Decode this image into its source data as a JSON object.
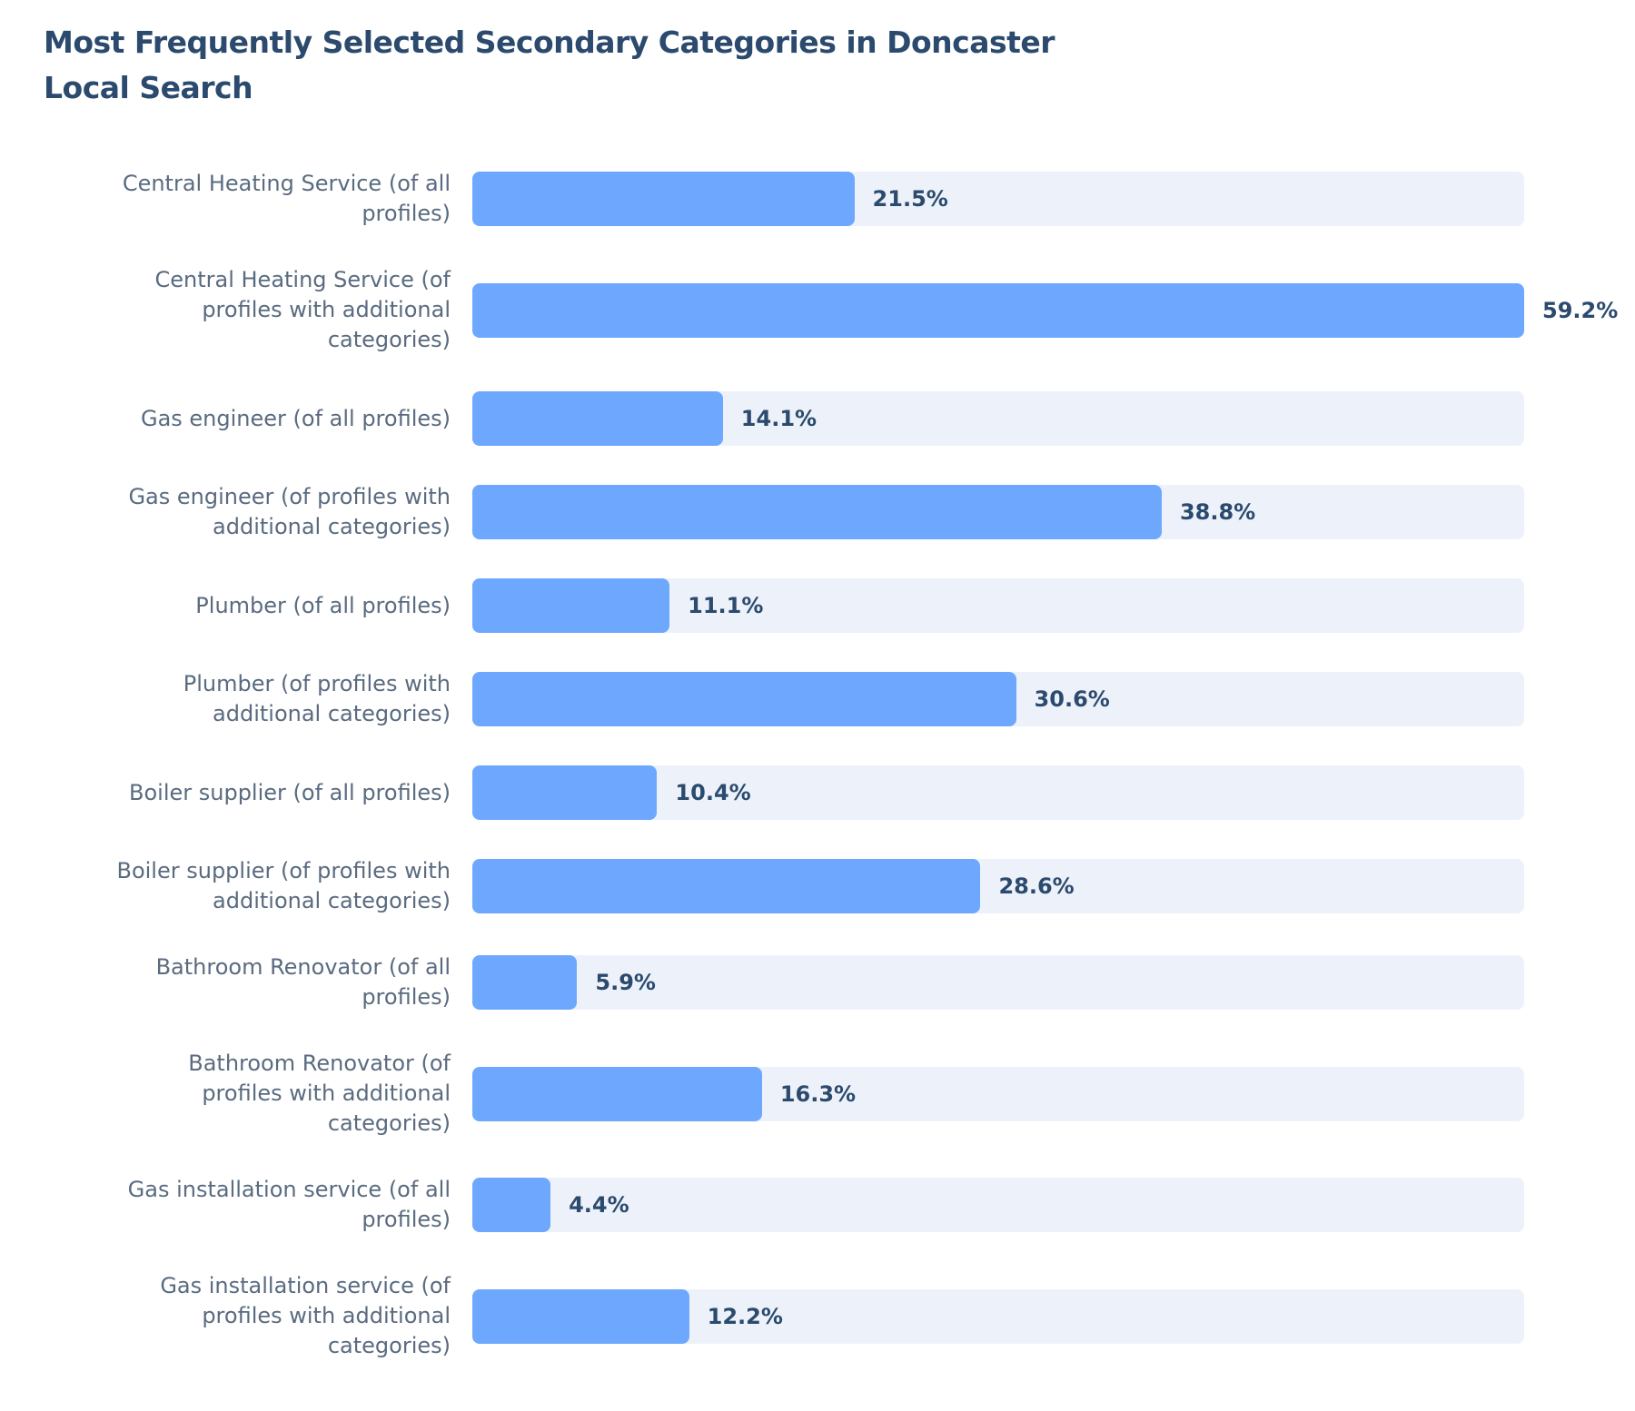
{
  "chart_data": {
    "type": "bar",
    "orientation": "horizontal",
    "title": "Most Frequently Selected Secondary Categories in Doncaster Local Search",
    "categories": [
      "Central Heating Service (of all profiles)",
      "Central Heating Service (of profiles with additional categories)",
      "Gas engineer (of all profiles)",
      "Gas engineer (of profiles with additional categories)",
      "Plumber (of all profiles)",
      "Plumber (of profiles with additional categories)",
      "Boiler supplier (of all profiles)",
      "Boiler supplier (of profiles with additional categories)",
      "Bathroom Renovator (of all profiles)",
      "Bathroom Renovator (of profiles with additional categories)",
      "Gas installation service (of all profiles)",
      "Gas installation service (of profiles with additional categories)"
    ],
    "values": [
      21.5,
      59.2,
      14.1,
      38.8,
      11.1,
      30.6,
      10.4,
      28.6,
      5.9,
      16.3,
      4.4,
      12.2
    ],
    "value_labels": [
      "21.5%",
      "59.2%",
      "14.1%",
      "38.8%",
      "11.1%",
      "30.6%",
      "10.4%",
      "28.6%",
      "5.9%",
      "16.3%",
      "4.4%",
      "12.2%"
    ],
    "color": "#6ea8fe",
    "track_color": "#edf2fa",
    "xlim": [
      0,
      59.2
    ]
  }
}
